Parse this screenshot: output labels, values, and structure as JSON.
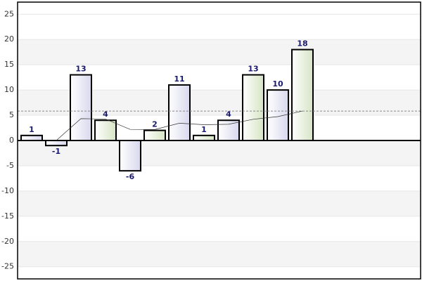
{
  "chart_data": {
    "type": "bar",
    "categories": [
      null,
      null,
      null,
      null,
      null,
      null,
      null,
      null,
      null,
      null,
      null,
      null
    ],
    "values": [
      1,
      -1,
      13,
      4,
      -6,
      2,
      11,
      1,
      4,
      13,
      10,
      18
    ],
    "colors": [
      "#d8d8ee",
      "#d8d8ee",
      "#d8d8ee",
      "#d6e4c4",
      "#d8d8ee",
      "#d6e4c4",
      "#d8d8ee",
      "#d6e4c4",
      "#d8d8ee",
      "#d6e4c4",
      "#d8d8ee",
      "#d6e4c4"
    ],
    "trend_values": [
      null,
      0,
      4.33,
      4.25,
      2.2,
      2.17,
      3.43,
      3.13,
      3.22,
      4.2,
      4.73,
      5.83
    ],
    "average": 5.83,
    "ylim": [
      -27.4,
      27.4
    ],
    "yticks": [
      -25,
      -20,
      -15,
      -10,
      -5,
      0,
      5,
      10,
      15,
      20,
      25
    ],
    "grid": true
  }
}
